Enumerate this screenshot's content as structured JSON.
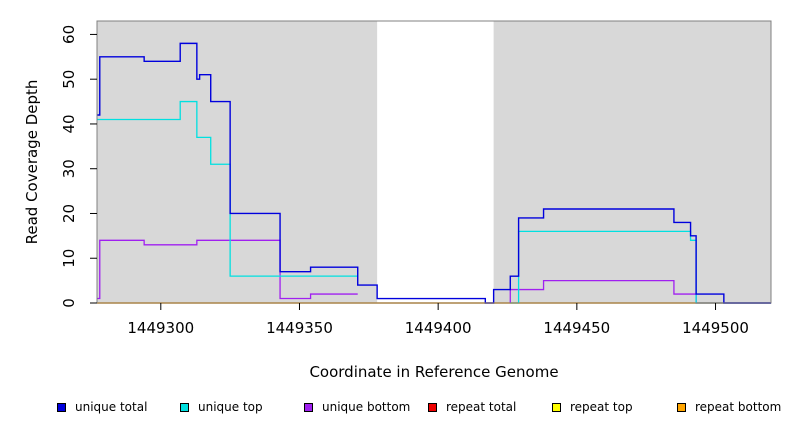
{
  "chart_data": {
    "type": "line",
    "title": "",
    "xlabel": "Coordinate in Reference Genome",
    "ylabel": "Read Coverage Depth",
    "xlim": [
      1449277,
      1449520
    ],
    "ylim": [
      0,
      63
    ],
    "x_ticks": [
      1449300,
      1449350,
      1449400,
      1449450,
      1449500
    ],
    "x_tick_labels": [
      "1449300",
      "1449350",
      "1449400",
      "1449450",
      "1449500"
    ],
    "y_ticks": [
      0,
      10,
      20,
      30,
      40,
      50,
      60
    ],
    "y_tick_labels": [
      "0",
      "10",
      "20",
      "30",
      "40",
      "50",
      "60"
    ],
    "shaded_regions": [
      {
        "x_start": 1449277,
        "x_end": 1449378,
        "color": "#d8d8d8"
      },
      {
        "x_start": 1449420,
        "x_end": 1449520,
        "color": "#d8d8d8"
      }
    ],
    "legend_position": "bottom",
    "series": [
      {
        "name": "unique total",
        "color": "#0000dd",
        "step_x": [
          1449277,
          1449278,
          1449294,
          1449307,
          1449313,
          1449314,
          1449318,
          1449325,
          1449343,
          1449354,
          1449371,
          1449378,
          1449417,
          1449420,
          1449426,
          1449429,
          1449438,
          1449485,
          1449491,
          1449493,
          1449503,
          1449520
        ],
        "step_y": [
          42,
          55,
          54,
          58,
          50,
          51,
          45,
          20,
          7,
          8,
          4,
          1,
          0,
          3,
          6,
          19,
          21,
          18,
          15,
          2,
          0,
          0
        ]
      },
      {
        "name": "unique top",
        "color": "#00e0e0",
        "step_x": [
          1449277,
          1449307,
          1449313,
          1449318,
          1449325,
          1449355,
          1449371,
          1449426,
          1449429,
          1449483,
          1449491,
          1449493,
          1449520
        ],
        "step_y": [
          41,
          45,
          37,
          31,
          6,
          6,
          0,
          0,
          16,
          16,
          14,
          0,
          0
        ],
        "open_end_x": 1449371
      },
      {
        "name": "unique bottom",
        "color": "#a020f0",
        "step_x": [
          1449277,
          1449278,
          1449294,
          1449313,
          1449343,
          1449354,
          1449371,
          1449426,
          1449438,
          1449485,
          1449493,
          1449520
        ],
        "step_y": [
          1,
          14,
          13,
          14,
          1,
          2,
          0,
          3,
          5,
          2,
          0,
          0
        ],
        "open_end_x": 1449371
      },
      {
        "name": "repeat total",
        "color": "#ee0000",
        "step_x": [
          1449277,
          1449520
        ],
        "step_y": [
          0,
          0
        ]
      },
      {
        "name": "repeat top",
        "color": "#ffff00",
        "step_x": [
          1449277,
          1449520
        ],
        "step_y": [
          0,
          0
        ]
      },
      {
        "name": "repeat bottom",
        "color": "#ffa500",
        "step_x": [
          1449277,
          1449378,
          1449420,
          1449520
        ],
        "step_y": [
          0,
          0,
          0,
          0
        ]
      }
    ]
  },
  "legend": [
    {
      "label": "unique total",
      "color": "#0000dd"
    },
    {
      "label": "unique top",
      "color": "#00e0e0"
    },
    {
      "label": "unique bottom",
      "color": "#a020f0"
    },
    {
      "label": "repeat total",
      "color": "#ee0000"
    },
    {
      "label": "repeat top",
      "color": "#ffff00"
    },
    {
      "label": "repeat bottom",
      "color": "#ffa500"
    }
  ]
}
